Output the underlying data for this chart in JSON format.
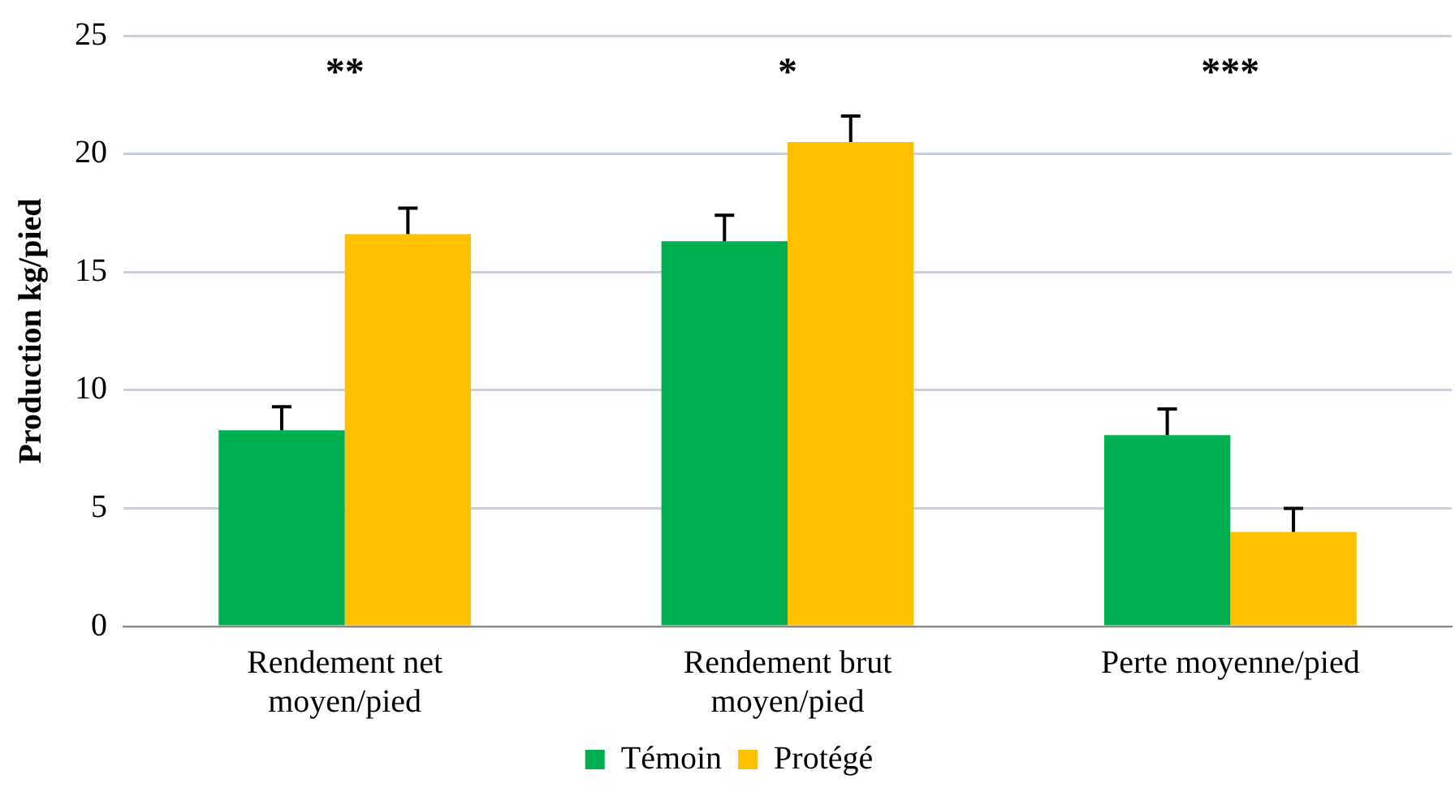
{
  "chart_data": {
    "type": "bar",
    "ylabel": "Production kg/pied",
    "categories": [
      "Rendement net moyen/pied",
      "Rendement brut moyen/pied",
      "Perte moyenne/pied"
    ],
    "series": [
      {
        "name": "Témoin",
        "color": "#00b050",
        "values": [
          8.3,
          16.3,
          8.1
        ],
        "errors": [
          [
            8.3,
            9.3
          ],
          [
            16.3,
            17.4
          ],
          [
            8.1,
            9.2
          ]
        ]
      },
      {
        "name": "Protégé",
        "color": "#ffc000",
        "values": [
          16.6,
          20.5,
          4.0
        ],
        "errors": [
          [
            16.6,
            17.7
          ],
          [
            20.5,
            21.6
          ],
          [
            4.0,
            5.0
          ]
        ]
      }
    ],
    "ylim": [
      0,
      25
    ],
    "yticks": [
      0,
      5,
      10,
      15,
      20,
      25
    ],
    "grid": "y",
    "legend": "bottom",
    "annotations": [
      "**",
      "*",
      "***"
    ]
  }
}
